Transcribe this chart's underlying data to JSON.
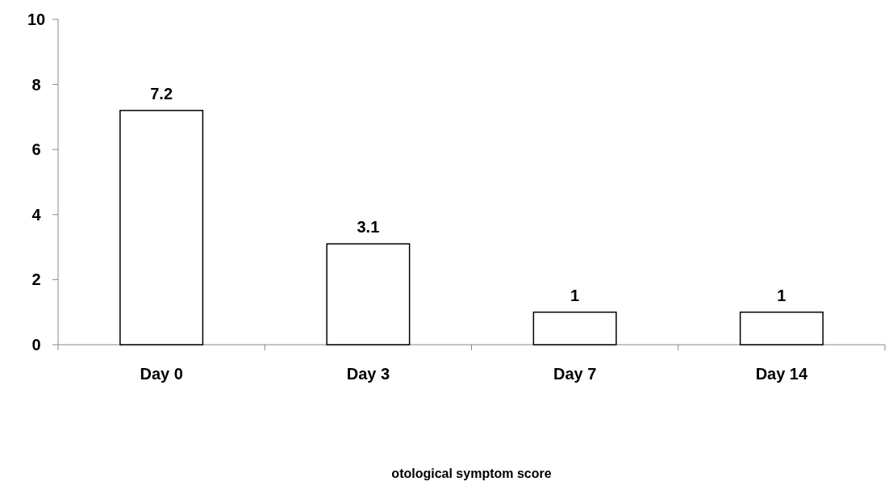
{
  "chart_data": {
    "type": "bar",
    "annotations": [
      "otological symptom score"
    ],
    "categories": [
      "Day 0",
      "Day 3",
      "Day 7",
      "Day 14"
    ],
    "values": [
      7.2,
      3.1,
      1,
      1
    ],
    "color": "#ffffff",
    "ylim": [
      0,
      10
    ],
    "yticks": [
      0,
      2,
      4,
      6,
      8,
      10
    ],
    "data_labels": true,
    "grid": false
  }
}
